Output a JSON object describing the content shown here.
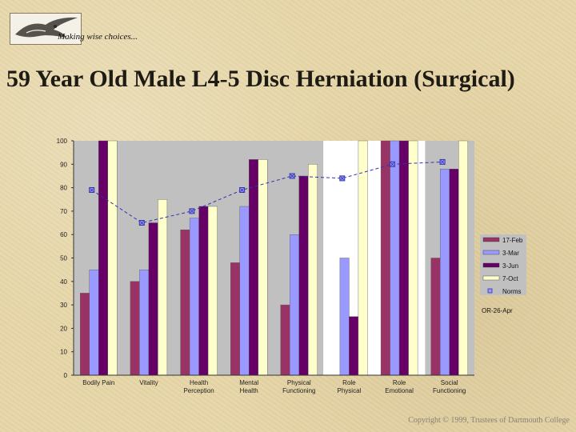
{
  "header": {
    "tagline": "Making wise choices..."
  },
  "title": "59 Year Old Male L4-5 Disc Herniation (Surgical)",
  "footer": {
    "copyright": "Copyright © 1999, Trustees of Dartmouth College"
  },
  "icons": {
    "logo": "bird-logo-icon"
  },
  "chart_data": {
    "type": "bar",
    "categories": [
      [
        "Bodily Pain"
      ],
      [
        "Vitality"
      ],
      [
        "Health",
        "Perception"
      ],
      [
        "Mental",
        "Health"
      ],
      [
        "Physical",
        "Functioning"
      ],
      [
        "Role",
        "Physical"
      ],
      [
        "Role",
        "Emotional"
      ],
      [
        "Social",
        "Functioning"
      ]
    ],
    "series": [
      {
        "name": "17-Feb",
        "color": "#993366",
        "values": [
          35,
          40,
          62,
          48,
          30,
          0,
          100,
          50
        ]
      },
      {
        "name": "3-Mar",
        "color": "#9999ff",
        "values": [
          45,
          45,
          67,
          72,
          60,
          50,
          100,
          88
        ]
      },
      {
        "name": "3-Jun",
        "color": "#660066",
        "values": [
          100,
          65,
          72,
          92,
          85,
          25,
          100,
          88
        ]
      },
      {
        "name": "7-Oct",
        "color": "#ffffcc",
        "values": [
          100,
          75,
          72,
          92,
          90,
          100,
          100,
          100
        ]
      }
    ],
    "norms": {
      "name": "Norms",
      "color": "#3333aa",
      "values": [
        79,
        65,
        70,
        79,
        85,
        84,
        90,
        91
      ]
    },
    "legend_extra": "OR-26-Apr",
    "ylim": [
      0,
      100
    ],
    "yticks": [
      0,
      10,
      20,
      30,
      40,
      50,
      60,
      70,
      80,
      90,
      100
    ],
    "grid": false,
    "legend_position": "right",
    "plot_background": "#c0c0c0",
    "highlight_background": "#ffffff"
  }
}
